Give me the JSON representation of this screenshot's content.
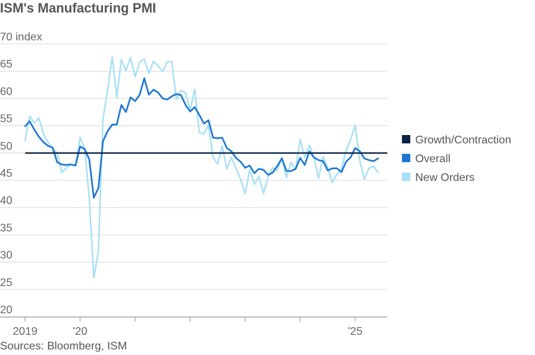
{
  "chart_data": {
    "type": "line",
    "title": "ISM's Manufacturing PMI",
    "y_unit": "index",
    "ylim": [
      20,
      70
    ],
    "y_ticks": [
      20,
      25,
      30,
      35,
      40,
      45,
      50,
      55,
      60,
      65,
      70
    ],
    "x_range": [
      "2019-01",
      "2025-08"
    ],
    "x_tick_labels": [
      {
        "date": "2019-01",
        "label": "2019"
      },
      {
        "date": "2020-01",
        "label": "'20"
      },
      {
        "date": "2021-01",
        "label": ""
      },
      {
        "date": "2022-01",
        "label": ""
      },
      {
        "date": "2023-01",
        "label": ""
      },
      {
        "date": "2024-01",
        "label": ""
      },
      {
        "date": "2025-01",
        "label": "'25"
      }
    ],
    "grid": true,
    "legend_position": "right",
    "reference_line": {
      "name": "Growth/Contraction",
      "value": 50,
      "color": "#0b2545"
    },
    "start_month": "2019-01",
    "series": [
      {
        "name": "Overall",
        "color": "#1f77d0",
        "values": [
          54.9,
          55.8,
          54.3,
          53.0,
          52.0,
          51.3,
          51.0,
          48.3,
          47.9,
          47.8,
          47.9,
          47.7,
          51.2,
          50.7,
          48.8,
          41.8,
          43.6,
          52.2,
          54.0,
          55.2,
          55.2,
          58.8,
          57.5,
          60.2,
          59.5,
          60.7,
          63.7,
          60.7,
          61.6,
          61.1,
          60.0,
          59.8,
          60.4,
          60.8,
          60.6,
          58.8,
          57.6,
          58.4,
          57.0,
          55.4,
          56.0,
          52.8,
          52.7,
          52.8,
          50.9,
          50.3,
          49.1,
          48.4,
          47.3,
          47.7,
          46.3,
          47.1,
          46.9,
          46.0,
          46.4,
          47.6,
          49.0,
          46.7,
          46.7,
          47.1,
          49.1,
          47.8,
          50.3,
          49.2,
          48.7,
          48.5,
          46.8,
          47.2,
          47.2,
          46.5,
          48.4,
          49.2,
          50.9,
          50.3,
          49.0,
          48.7,
          48.5,
          49.0
        ]
      },
      {
        "name": "New Orders",
        "color": "#a8e0f5",
        "values": [
          52.3,
          56.7,
          55.5,
          56.4,
          53.5,
          52.0,
          50.8,
          50.0,
          46.4,
          47.3,
          47.9,
          47.8,
          52.9,
          50.8,
          41.7,
          27.1,
          32.2,
          56.4,
          61.5,
          67.6,
          60.2,
          67.1,
          65.1,
          67.5,
          64.0,
          66.7,
          67.2,
          64.6,
          66.8,
          66.0,
          64.9,
          66.7,
          66.7,
          59.8,
          61.5,
          61.0,
          57.9,
          61.7,
          53.8,
          53.5,
          55.1,
          49.2,
          48.0,
          51.3,
          47.1,
          49.2,
          47.2,
          45.2,
          42.5,
          47.0,
          44.3,
          45.7,
          42.6,
          45.6,
          47.3,
          46.8,
          49.2,
          45.5,
          48.3,
          47.0,
          52.5,
          49.2,
          51.4,
          49.1,
          45.4,
          49.3,
          47.4,
          44.6,
          46.1,
          47.1,
          50.4,
          52.5,
          55.1,
          48.6,
          45.2,
          47.2,
          47.6,
          46.4
        ]
      }
    ],
    "source": "Sources: Bloomberg, ISM"
  }
}
